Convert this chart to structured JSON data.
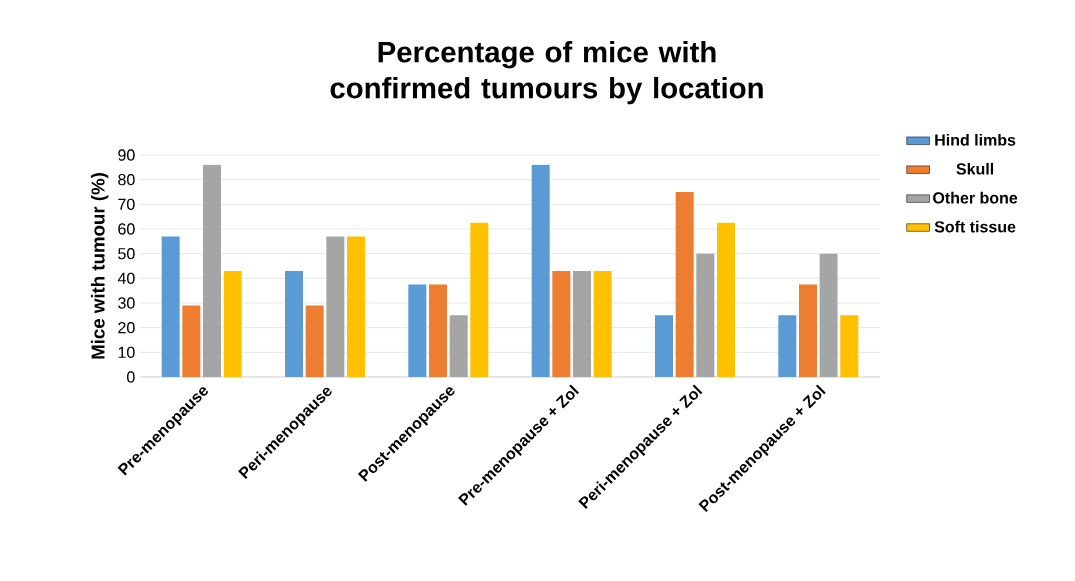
{
  "chart_data": {
    "type": "bar",
    "title": "Percentage of mice with confirmed tumours by location",
    "ylabel": "Mice with tumour (%)",
    "categories": [
      "Pre-menopause",
      "Peri-menopause",
      "Post-menopause",
      "Pre-menopause + Zol",
      "Peri-menopause + Zol",
      "Post-menopause + Zol"
    ],
    "series": [
      {
        "name": "Hind limbs",
        "color": "#5b9bd5",
        "values": [
          57,
          43,
          37.5,
          86,
          25,
          25
        ]
      },
      {
        "name": "Skull",
        "color": "#ed7d31",
        "values": [
          29,
          29,
          37.5,
          43,
          75,
          37.5
        ]
      },
      {
        "name": "Other bone",
        "color": "#a5a5a5",
        "values": [
          86,
          57,
          25,
          43,
          50,
          50
        ]
      },
      {
        "name": "Soft tissue",
        "color": "#ffc000",
        "values": [
          43,
          57,
          62.5,
          43,
          62.5,
          25
        ]
      }
    ],
    "ylim": [
      0,
      90
    ],
    "yticks": [
      0,
      10,
      20,
      30,
      40,
      50,
      60,
      70,
      80,
      90
    ],
    "grid": "y",
    "legend": "right"
  }
}
